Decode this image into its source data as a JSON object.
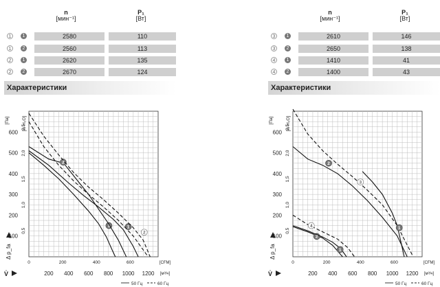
{
  "left": {
    "header": {
      "col_n": "n",
      "col_n_unit": "[мин⁻¹]",
      "col_p": "P₁",
      "col_p_unit": "[Вт]"
    },
    "rows": [
      {
        "a": "1",
        "b": "1",
        "n": "2580",
        "p": "110"
      },
      {
        "a": "1",
        "b": "2",
        "n": "2560",
        "p": "113"
      },
      {
        "a": "2",
        "b": "1",
        "n": "2620",
        "p": "135"
      },
      {
        "a": "2",
        "b": "2",
        "n": "2670",
        "p": "124"
      }
    ],
    "section_title": "Характеристики"
  },
  "right": {
    "header": {
      "col_n": "n",
      "col_n_unit": "[мин⁻¹]",
      "col_p": "P₁",
      "col_p_unit": "[Вт]"
    },
    "rows": [
      {
        "a": "3",
        "b": "1",
        "n": "2610",
        "p": "146"
      },
      {
        "a": "3",
        "b": "2",
        "n": "2650",
        "p": "138"
      },
      {
        "a": "4",
        "b": "1",
        "n": "1410",
        "p": "41"
      },
      {
        "a": "4",
        "b": "2",
        "n": "1400",
        "p": "43"
      }
    ],
    "section_title": "Характеристики"
  },
  "chart_data": [
    {
      "type": "line",
      "ylabel_pa": "[Па]",
      "ylabel_inh2o": "[in H₂O]",
      "ylabel_dp": "Δ p_fa",
      "x_cfm_label": "[CFM]",
      "x_m3h_label": "[м³/ч]",
      "x_symbol": "V̇",
      "legend_50": "50 Гц",
      "legend_60": "60 Гц",
      "xlim_m3h": [
        0,
        1300
      ],
      "ylim_pa": [
        0,
        700
      ],
      "yticks_pa": [
        100,
        200,
        300,
        400,
        500,
        600
      ],
      "yticks_inh2o": [
        "0,5",
        "1,0",
        "1,5",
        "2,0",
        "2,5"
      ],
      "xticks_cfm": [
        "0",
        "200",
        "400",
        "600"
      ],
      "xticks_m3h": [
        "200",
        "400",
        "600",
        "800",
        "1000",
        "1200"
      ],
      "series": [
        {
          "name": "1",
          "style": "solid",
          "marker": "in",
          "marker_at": [
            805,
            150
          ],
          "x": [
            0,
            150,
            300,
            450,
            600,
            700,
            780,
            840,
            870
          ],
          "y": [
            500,
            440,
            375,
            300,
            220,
            160,
            95,
            30,
            0
          ]
        },
        {
          "name": "1",
          "style": "solid",
          "marker": "in",
          "marker_at": [
            1000,
            145
          ],
          "x": [
            0,
            200,
            400,
            550,
            700,
            850,
            950,
            1050,
            1100
          ],
          "y": [
            510,
            440,
            355,
            295,
            240,
            180,
            130,
            50,
            0
          ]
        },
        {
          "name": "2",
          "style": "solid",
          "marker": "in",
          "marker_at": [
            345,
            455
          ],
          "x": [
            0,
            200,
            350,
            500,
            600,
            700,
            800,
            900,
            980
          ],
          "y": [
            530,
            470,
            450,
            360,
            300,
            230,
            160,
            80,
            0
          ]
        },
        {
          "name": "2",
          "style": "dashed",
          "marker": "out",
          "marker_at": [
            1160,
            118
          ],
          "x": [
            0,
            150,
            300,
            450,
            600,
            750,
            900,
            1050,
            1200
          ],
          "y": [
            650,
            530,
            440,
            365,
            300,
            240,
            175,
            100,
            0
          ]
        },
        {
          "name": "",
          "style": "dashed",
          "marker": "none",
          "marker_at": [
            0,
            0
          ],
          "x": [
            0,
            150,
            300,
            450,
            600,
            750,
            900,
            1050,
            1150,
            1220
          ],
          "y": [
            690,
            580,
            490,
            405,
            335,
            275,
            210,
            140,
            80,
            0
          ]
        }
      ]
    },
    {
      "type": "line",
      "ylabel_pa": "[Па]",
      "ylabel_inh2o": "[in H₂O]",
      "ylabel_dp": "Δ p_fa",
      "x_cfm_label": "[CFM]",
      "x_m3h_label": "[м³/ч]",
      "x_symbol": "V̇",
      "legend_50": "50 Гц",
      "legend_60": "60 Гц",
      "xlim_m3h": [
        0,
        1300
      ],
      "ylim_pa": [
        0,
        700
      ],
      "yticks_pa": [
        100,
        200,
        300,
        400,
        500,
        600
      ],
      "yticks_inh2o": [
        "0,5",
        "1,0",
        "1,5",
        "2,0",
        "2,5"
      ],
      "xticks_cfm": [
        "0",
        "200",
        "400",
        "600"
      ],
      "xticks_m3h": [
        "200",
        "400",
        "600",
        "800",
        "1000",
        "1200"
      ],
      "series": [
        {
          "name": "2",
          "style": "solid",
          "marker": "in",
          "marker_at": [
            360,
            450
          ],
          "x": [
            0,
            150,
            300,
            450,
            600,
            750,
            900,
            1050,
            1150
          ],
          "y": [
            530,
            470,
            440,
            400,
            340,
            270,
            190,
            100,
            0
          ]
        },
        {
          "name": "3",
          "style": "dashed",
          "marker": "out",
          "marker_at": [
            680,
            360
          ],
          "x": [
            0,
            150,
            300,
            450,
            600,
            750,
            900,
            1050,
            1200
          ],
          "y": [
            710,
            590,
            510,
            445,
            385,
            320,
            250,
            150,
            10
          ]
        },
        {
          "name": "1",
          "style": "solid",
          "marker": "in",
          "marker_at": [
            1070,
            140
          ],
          "x": [
            700,
            800,
            900,
            1000,
            1050,
            1120
          ],
          "y": [
            410,
            360,
            300,
            210,
            150,
            0
          ]
        },
        {
          "name": "4",
          "style": "dashed",
          "marker": "out",
          "marker_at": [
            185,
            150
          ],
          "x": [
            0,
            150,
            300,
            450,
            550,
            620
          ],
          "y": [
            200,
            155,
            120,
            85,
            45,
            0
          ]
        },
        {
          "name": "2",
          "style": "solid",
          "marker": "in",
          "marker_at": [
            240,
            98
          ],
          "x": [
            0,
            150,
            300,
            400,
            500
          ],
          "y": [
            145,
            120,
            90,
            55,
            0
          ]
        },
        {
          "name": "1",
          "style": "solid",
          "marker": "in",
          "marker_at": [
            475,
            35
          ],
          "x": [
            0,
            150,
            300,
            400,
            480,
            540
          ],
          "y": [
            150,
            125,
            95,
            70,
            40,
            0
          ]
        }
      ]
    }
  ]
}
